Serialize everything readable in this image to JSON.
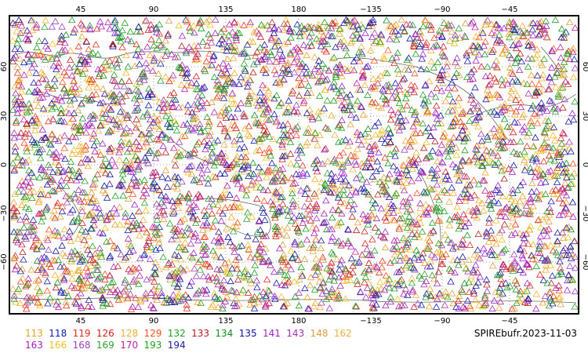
{
  "map": {
    "lon_ticks": [
      "45",
      "90",
      "135",
      "180",
      "−135",
      "−90",
      "−45"
    ],
    "lat_ticks": [
      "60",
      "30",
      "0",
      "−30",
      "−60"
    ],
    "colors": {
      "frame": "#000000",
      "coast": "#555555",
      "grid": "#444444"
    }
  },
  "legend": [
    {
      "label": "113",
      "color": "#f0a020"
    },
    {
      "label": "118",
      "color": "#1020b0"
    },
    {
      "label": "119",
      "color": "#e03020"
    },
    {
      "label": "126",
      "color": "#d02020"
    },
    {
      "label": "128",
      "color": "#f0b030"
    },
    {
      "label": "129",
      "color": "#ff5020"
    },
    {
      "label": "132",
      "color": "#20a020"
    },
    {
      "label": "133",
      "color": "#b02020"
    },
    {
      "label": "134",
      "color": "#109020"
    },
    {
      "label": "135",
      "color": "#1010a0"
    },
    {
      "label": "141",
      "color": "#a020d0"
    },
    {
      "label": "143",
      "color": "#a030b0"
    },
    {
      "label": "148",
      "color": "#d8a040"
    },
    {
      "label": "162",
      "color": "#f0b040"
    },
    {
      "label": "163",
      "color": "#a020c0"
    },
    {
      "label": "166",
      "color": "#f0c020"
    },
    {
      "label": "168",
      "color": "#a040c0"
    },
    {
      "label": "169",
      "color": "#30a030"
    },
    {
      "label": "170",
      "color": "#c020a0"
    },
    {
      "label": "193",
      "color": "#20a020"
    },
    {
      "label": "194",
      "color": "#2020a0"
    }
  ],
  "footer_label": "SPIREbufr.2023-11-03"
}
